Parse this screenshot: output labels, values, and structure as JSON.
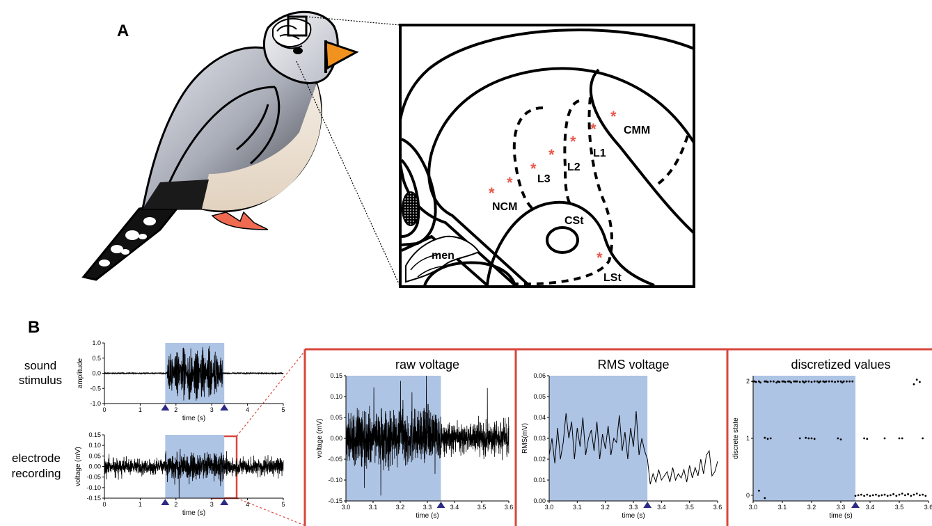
{
  "panel_a": {
    "label": "A",
    "regions": [
      "CMM",
      "L1",
      "L2",
      "L3",
      "NCM",
      "CSt",
      "men",
      "LSt"
    ]
  },
  "panel_b": {
    "label": "B",
    "row_labels": [
      "sound\nstimulus",
      "electrode\nrecording"
    ]
  },
  "colors": {
    "stimulus_shade": "#aec4e5",
    "star": "#e8584a",
    "zoom_box": "#d9463b",
    "marker": "#2b2b85",
    "beak": "#f2921e",
    "feet": "#f06a52"
  },
  "chart_data": [
    {
      "type": "line",
      "ylabel": "amplitude",
      "xlabel": "time (s)",
      "xlim": [
        0,
        5
      ],
      "ylim": [
        -1.0,
        1.0
      ],
      "xticks": [
        "0",
        "1",
        "2",
        "3",
        "4",
        "5"
      ],
      "yticks": [
        "1.0",
        "0.5",
        "0.0",
        "-0.5",
        "-1.0"
      ],
      "shaded_region": [
        1.7,
        3.35
      ],
      "markers_x": [
        1.7,
        3.35
      ]
    },
    {
      "type": "line",
      "ylabel": "voltage (mV)",
      "xlabel": "time (s)",
      "xlim": [
        0,
        5
      ],
      "ylim": [
        -0.15,
        0.15
      ],
      "xticks": [
        "0",
        "1",
        "2",
        "3",
        "4",
        "5"
      ],
      "yticks": [
        "0.15",
        "0.10",
        "0.05",
        "0.00",
        "-0.05",
        "-0.10",
        "-0.15"
      ],
      "shaded_region": [
        1.7,
        3.35
      ],
      "markers_x": [
        1.7,
        3.35
      ],
      "zoom_window": [
        3.0,
        3.6
      ]
    },
    {
      "type": "line",
      "title": "raw voltage",
      "ylabel": "voltage (mV)",
      "xlabel": "time (s)",
      "xlim": [
        3.0,
        3.6
      ],
      "ylim": [
        -0.15,
        0.15
      ],
      "xticks": [
        "3.0",
        "3.1",
        "3.2",
        "3.3",
        "3.4",
        "3.5",
        "3.6"
      ],
      "yticks": [
        "0.15",
        "0.10",
        "0.05",
        "0.00",
        "-0.05",
        "-0.10",
        "-0.15"
      ],
      "shaded_region": [
        3.0,
        3.35
      ],
      "markers_x": [
        3.35
      ]
    },
    {
      "type": "line",
      "title": "RMS voltage",
      "ylabel": "RMS(mV)",
      "xlabel": "time (s)",
      "xlim": [
        3.0,
        3.6
      ],
      "ylim": [
        0.0,
        0.06
      ],
      "xticks": [
        "3.0",
        "3.1",
        "3.2",
        "3.3",
        "3.4",
        "3.5",
        "3.6"
      ],
      "yticks": [
        "0.06",
        "0.05",
        "0.04",
        "0.03",
        "0.02",
        "0.01",
        "0.00"
      ],
      "shaded_region": [
        3.0,
        3.35
      ],
      "markers_x": [
        3.35
      ],
      "x": [
        3.0,
        3.01,
        3.02,
        3.03,
        3.04,
        3.05,
        3.06,
        3.07,
        3.08,
        3.09,
        3.1,
        3.11,
        3.12,
        3.13,
        3.14,
        3.15,
        3.16,
        3.17,
        3.18,
        3.19,
        3.2,
        3.21,
        3.22,
        3.23,
        3.24,
        3.25,
        3.26,
        3.27,
        3.28,
        3.29,
        3.3,
        3.31,
        3.32,
        3.33,
        3.34,
        3.35,
        3.36,
        3.37,
        3.38,
        3.39,
        3.4,
        3.41,
        3.42,
        3.43,
        3.44,
        3.45,
        3.46,
        3.47,
        3.48,
        3.49,
        3.5,
        3.51,
        3.52,
        3.53,
        3.54,
        3.55,
        3.56,
        3.57,
        3.58,
        3.59,
        3.6
      ],
      "y": [
        0.022,
        0.03,
        0.018,
        0.035,
        0.02,
        0.028,
        0.042,
        0.03,
        0.038,
        0.02,
        0.035,
        0.026,
        0.04,
        0.022,
        0.03,
        0.034,
        0.024,
        0.038,
        0.02,
        0.032,
        0.025,
        0.036,
        0.022,
        0.03,
        0.028,
        0.041,
        0.024,
        0.033,
        0.02,
        0.035,
        0.026,
        0.043,
        0.022,
        0.03,
        0.024,
        0.02,
        0.008,
        0.013,
        0.009,
        0.015,
        0.01,
        0.012,
        0.014,
        0.009,
        0.016,
        0.01,
        0.013,
        0.011,
        0.015,
        0.009,
        0.017,
        0.011,
        0.016,
        0.012,
        0.02,
        0.013,
        0.022,
        0.024,
        0.012,
        0.014,
        0.019
      ]
    },
    {
      "type": "scatter",
      "title": "discretized values",
      "ylabel": "discrete state",
      "xlabel": "time (s)",
      "xlim": [
        3.0,
        3.6
      ],
      "ylim": [
        -0.1,
        2.1
      ],
      "xticks": [
        "3.0",
        "3.1",
        "3.2",
        "3.3",
        "3.4",
        "3.5",
        "3.6"
      ],
      "yticks": [
        "2",
        "1",
        "0"
      ],
      "shaded_region": [
        3.0,
        3.35
      ],
      "markers_x": [
        3.35
      ],
      "x": [
        3.0,
        3.005,
        3.01,
        3.02,
        3.025,
        3.04,
        3.045,
        3.05,
        3.06,
        3.07,
        3.08,
        3.085,
        3.09,
        3.1,
        3.105,
        3.11,
        3.12,
        3.125,
        3.13,
        3.14,
        3.145,
        3.15,
        3.16,
        3.17,
        3.175,
        3.18,
        3.19,
        3.2,
        3.21,
        3.22,
        3.225,
        3.23,
        3.24,
        3.245,
        3.25,
        3.26,
        3.27,
        3.28,
        3.29,
        3.3,
        3.305,
        3.31,
        3.32,
        3.33,
        3.34,
        3.04,
        3.05,
        3.06,
        3.16,
        3.18,
        3.19,
        3.2,
        3.21,
        3.29,
        3.3,
        3.38,
        3.39,
        3.45,
        3.5,
        3.51,
        3.58,
        3.02,
        3.04,
        3.35,
        3.36,
        3.37,
        3.38,
        3.39,
        3.4,
        3.41,
        3.42,
        3.43,
        3.44,
        3.45,
        3.46,
        3.47,
        3.48,
        3.49,
        3.5,
        3.51,
        3.52,
        3.53,
        3.54,
        3.55,
        3.56,
        3.57,
        3.58,
        3.59,
        3.55,
        3.56,
        3.57
      ],
      "y": [
        2,
        2,
        1.99,
        2,
        1.98,
        2,
        2,
        1.99,
        2,
        2,
        1.98,
        2,
        1.99,
        2,
        2,
        1.99,
        2,
        2,
        1.98,
        2,
        2,
        2,
        1.99,
        2,
        1.98,
        2,
        2,
        1.99,
        2,
        2,
        1.98,
        2,
        2,
        1.99,
        2,
        2,
        2,
        1.99,
        2,
        2,
        1.98,
        2,
        2,
        2,
        2,
        1.01,
        0.99,
        1,
        1,
        1.01,
        1,
        1,
        0.99,
        1,
        0.98,
        1,
        0.99,
        1,
        1,
        1,
        1,
        0.08,
        -0.05,
        -0.01,
        0,
        0.01,
        -0.01,
        0.01,
        -0.01,
        0,
        0.01,
        -0.01,
        0,
        0.01,
        -0.01,
        0,
        0.02,
        -0.01,
        0.01,
        0.03,
        0,
        0.02,
        -0.01,
        0.01,
        0.03,
        0,
        0.01,
        -0.01,
        1.95,
        2.03,
        1.99
      ]
    }
  ]
}
